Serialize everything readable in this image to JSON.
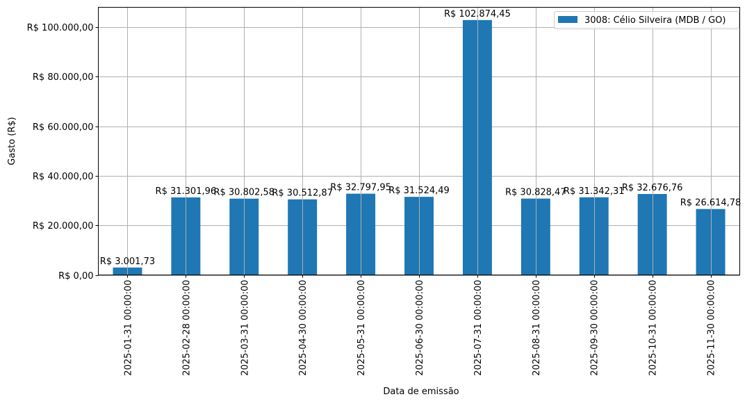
{
  "chart_data": {
    "type": "bar",
    "title": "",
    "xlabel": "Data de emissão",
    "ylabel": "Gasto (R$)",
    "ylim": [
      0,
      108018
    ],
    "grid": true,
    "legend_placement": "top-right",
    "color": "#1f77b4",
    "categories": [
      "2025-01-31 00:00:00",
      "2025-02-28 00:00:00",
      "2025-03-31 00:00:00",
      "2025-04-30 00:00:00",
      "2025-05-31 00:00:00",
      "2025-06-30 00:00:00",
      "2025-07-31 00:00:00",
      "2025-08-31 00:00:00",
      "2025-09-30 00:00:00",
      "2025-10-31 00:00:00",
      "2025-11-30 00:00:00"
    ],
    "series": [
      {
        "name": "3008: Célio Silveira (MDB / GO)",
        "values": [
          3001.73,
          31301.96,
          30802.58,
          30512.87,
          32797.95,
          31524.49,
          102874.45,
          30828.47,
          31342.31,
          32676.76,
          26614.78
        ],
        "labels": [
          "R$ 3.001,73",
          "R$ 31.301,96",
          "R$ 30.802,58",
          "R$ 30.512,87",
          "R$ 32.797,95",
          "R$ 31.524,49",
          "R$ 102.874,45",
          "R$ 30.828,47",
          "R$ 31.342,31",
          "R$ 32.676,76",
          "R$ 26.614,78"
        ]
      }
    ],
    "yticks": [
      0,
      20000,
      40000,
      60000,
      80000,
      100000
    ],
    "ytick_labels": [
      "R$ 0,00",
      "R$ 20.000,00",
      "R$ 40.000,00",
      "R$ 60.000,00",
      "R$ 80.000,00",
      "R$ 100.000,00"
    ]
  }
}
